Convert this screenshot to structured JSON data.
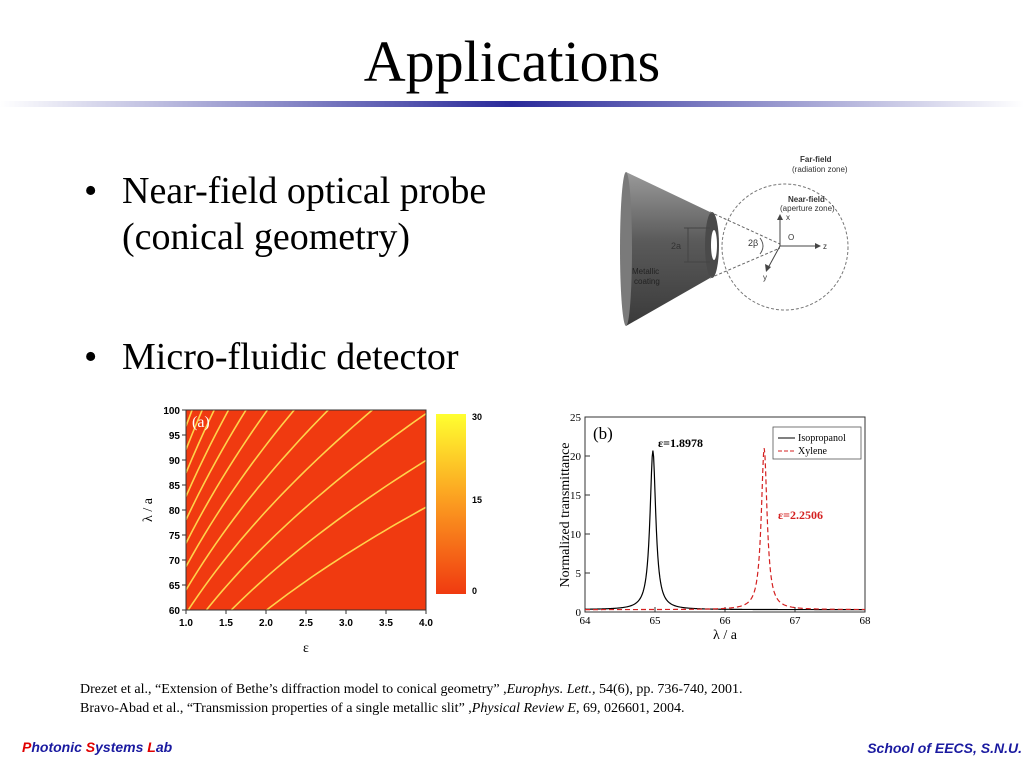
{
  "slide": {
    "title": "Applications",
    "bullets": [
      {
        "line1": "Near-field optical probe",
        "line2": "(conical geometry)"
      },
      {
        "line1": "Micro-fluidic detector"
      }
    ]
  },
  "probe_figure": {
    "far_field": "Far-field",
    "radiation_zone": "(radiation zone)",
    "near_field": "Near-field",
    "aperture_zone": "(aperture zone)",
    "aperture_label": "2a",
    "angle_label": "2β",
    "coating1": "Metallic",
    "coating2": "coating",
    "axis_x": "x",
    "axis_y": "y",
    "axis_z": "z",
    "origin": "O"
  },
  "chart_data": [
    {
      "type": "heatmap",
      "panel_label": "(a)",
      "xlabel": "ε",
      "ylabel": "λ / a",
      "xlim": [
        1.0,
        4.0
      ],
      "ylim": [
        60,
        100
      ],
      "xticks": [
        "1.0",
        "1.5",
        "2.0",
        "2.5",
        "3.0",
        "3.5",
        "4.0"
      ],
      "yticks": [
        "60",
        "65",
        "70",
        "75",
        "80",
        "85",
        "90",
        "95",
        "100"
      ],
      "colorbar_ticks": [
        "30",
        "15",
        "0"
      ],
      "colors": {
        "low": "#f03a10",
        "high": "#ffff30",
        "contour": "#ffd24a"
      }
    },
    {
      "type": "line",
      "panel_label": "(b)",
      "xlabel": "λ / a",
      "ylabel": "Normalized transmittance",
      "xlim": [
        64,
        68
      ],
      "ylim": [
        0,
        25
      ],
      "xticks": [
        "64",
        "65",
        "66",
        "67",
        "68"
      ],
      "yticks": [
        "0",
        "5",
        "10",
        "15",
        "20",
        "25"
      ],
      "legend_position": "top-right",
      "series": [
        {
          "name": "Isopropanol",
          "peak_x": 64.97,
          "peak_y": 20.7,
          "width": 0.05,
          "color": "#000000",
          "style": "solid",
          "annotation": "ε=1.8978"
        },
        {
          "name": "Xylene",
          "peak_x": 66.56,
          "peak_y": 21.0,
          "width": 0.05,
          "color": "#d42020",
          "style": "dashed",
          "annotation": "ε=2.2506"
        }
      ]
    }
  ],
  "references": [
    {
      "authors": "Drezet et al., “Extension of Bethe’s diffraction model to conical geometry” ,",
      "journal": "Europhys. Lett.,",
      "details": " 54(6), pp. 736-740, 2001."
    },
    {
      "authors": "Bravo-Abad et al., “Transmission properties of a single metallic slit” ,",
      "journal": "Physical Review E,",
      "details": " 69, 026601, 2004."
    }
  ],
  "footer": {
    "left_p": "P",
    "left_rest1": "hotonic ",
    "left_s": "S",
    "left_rest2": "ystems ",
    "left_l": "L",
    "left_rest3": "ab",
    "right": "School of EECS, S.N.U."
  }
}
